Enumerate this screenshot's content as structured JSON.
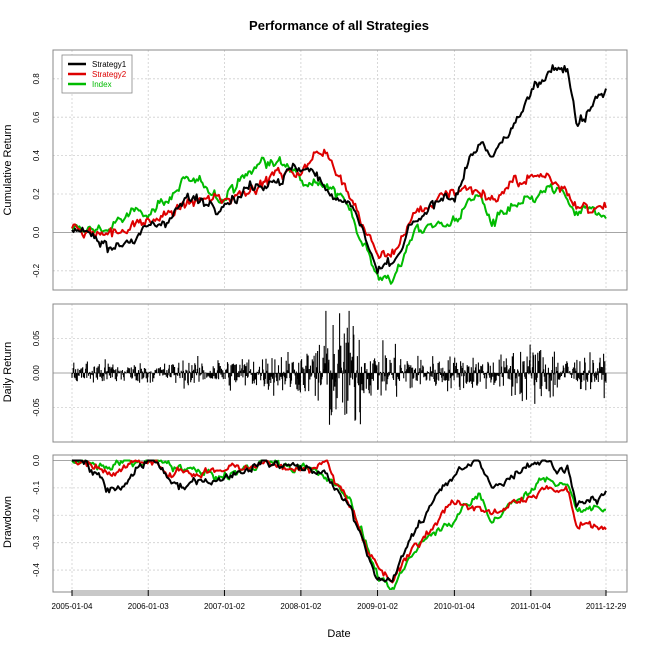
{
  "chart_data": {
    "type": "line",
    "title": "Performance of all Strategies",
    "xlabel": "Date",
    "x_ticks": [
      "2005-01-04",
      "2006-01-03",
      "2007-01-02",
      "2008-01-02",
      "2009-01-02",
      "2010-01-04",
      "2011-01-04",
      "2011-12-29"
    ],
    "x_range": [
      "2005-01-04",
      "2011-12-29"
    ],
    "grid": true,
    "legend": {
      "placement": "top-left",
      "entries": [
        "Strategy1",
        "Strategy2",
        "Index"
      ]
    },
    "colors": {
      "Strategy1": "#000000",
      "Strategy2": "#dd0000",
      "Index": "#00bb00"
    },
    "panels": [
      {
        "ylabel": "Cumulative Return",
        "ylim": [
          -0.3,
          0.95
        ],
        "y_ticks": [
          -0.2,
          0.0,
          0.2,
          0.4,
          0.6,
          0.8
        ],
        "y_tick_labels": [
          "-0.2",
          "0.0",
          "0.2",
          "0.4",
          "0.6",
          "0.8"
        ],
        "x": [
          "2005-01-04",
          "2005-07-01",
          "2006-01-03",
          "2006-07-03",
          "2007-01-02",
          "2007-07-02",
          "2008-01-02",
          "2008-05-01",
          "2008-09-01",
          "2009-01-02",
          "2009-03-09",
          "2009-07-01",
          "2010-01-04",
          "2010-05-03",
          "2010-07-01",
          "2011-01-04",
          "2011-04-01",
          "2011-07-01",
          "2011-08-10",
          "2011-12-29"
        ],
        "series": [
          {
            "name": "Strategy1",
            "values": [
              0.0,
              -0.05,
              0.0,
              0.17,
              0.17,
              0.27,
              0.33,
              0.24,
              0.15,
              -0.2,
              -0.2,
              0.05,
              0.2,
              0.47,
              0.35,
              0.72,
              0.88,
              0.85,
              0.58,
              0.72
            ]
          },
          {
            "name": "Strategy2",
            "values": [
              0.0,
              0.0,
              0.05,
              0.14,
              0.18,
              0.27,
              0.33,
              0.45,
              0.19,
              -0.12,
              -0.12,
              0.1,
              0.23,
              0.23,
              0.18,
              0.28,
              0.29,
              0.25,
              0.12,
              0.1
            ]
          },
          {
            "name": "Index",
            "values": [
              0.0,
              0.03,
              0.12,
              0.25,
              0.2,
              0.37,
              0.32,
              0.27,
              0.1,
              -0.2,
              -0.26,
              0.0,
              0.07,
              0.2,
              0.05,
              0.15,
              0.22,
              0.17,
              0.07,
              0.14
            ]
          }
        ]
      },
      {
        "ylabel": "Daily Return",
        "ylim": [
          -0.1,
          0.1
        ],
        "y_ticks": [
          -0.05,
          0.0,
          0.05
        ],
        "y_tick_labels": [
          "-0.05",
          "0.00",
          "0.05"
        ],
        "series": [
          {
            "name": "Strategy1",
            "volatility": [
              0.015,
              0.012,
              0.015,
              0.02,
              0.025,
              0.07,
              0.03,
              0.02,
              0.02,
              0.035,
              0.02
            ],
            "max_abs": 0.09
          }
        ]
      },
      {
        "ylabel": "Drawdown",
        "ylim": [
          -0.48,
          0.02
        ],
        "y_ticks": [
          -0.4,
          -0.3,
          -0.2,
          -0.1,
          0.0
        ],
        "y_tick_labels": [
          "-0.4",
          "-0.3",
          "-0.2",
          "-0.1",
          "0.0"
        ],
        "x": [
          "2005-01-04",
          "2005-03-15",
          "2005-07-01",
          "2006-01-03",
          "2006-06-01",
          "2007-01-02",
          "2007-07-02",
          "2008-01-02",
          "2008-05-01",
          "2008-09-01",
          "2009-01-02",
          "2009-03-09",
          "2009-07-01",
          "2010-01-04",
          "2010-05-03",
          "2010-07-01",
          "2011-01-04",
          "2011-04-01",
          "2011-07-01",
          "2011-08-10",
          "2011-12-29"
        ],
        "series": [
          {
            "name": "Strategy1",
            "values": [
              0.0,
              -0.02,
              -0.12,
              0.0,
              -0.1,
              -0.05,
              0.0,
              -0.02,
              -0.06,
              -0.18,
              -0.42,
              -0.45,
              -0.25,
              -0.05,
              0.0,
              -0.1,
              0.0,
              0.0,
              -0.02,
              -0.18,
              -0.1
            ]
          },
          {
            "name": "Strategy2",
            "values": [
              0.0,
              -0.01,
              -0.04,
              0.0,
              -0.05,
              -0.03,
              0.0,
              -0.04,
              0.0,
              -0.2,
              -0.38,
              -0.45,
              -0.3,
              -0.15,
              -0.15,
              -0.2,
              -0.12,
              -0.1,
              -0.12,
              -0.25,
              -0.25
            ]
          },
          {
            "name": "Index",
            "values": [
              0.0,
              -0.01,
              -0.02,
              0.0,
              -0.03,
              -0.06,
              0.0,
              -0.03,
              -0.05,
              -0.15,
              -0.42,
              -0.48,
              -0.32,
              -0.2,
              -0.12,
              -0.22,
              -0.1,
              -0.07,
              -0.09,
              -0.18,
              -0.17
            ]
          }
        ]
      }
    ]
  }
}
